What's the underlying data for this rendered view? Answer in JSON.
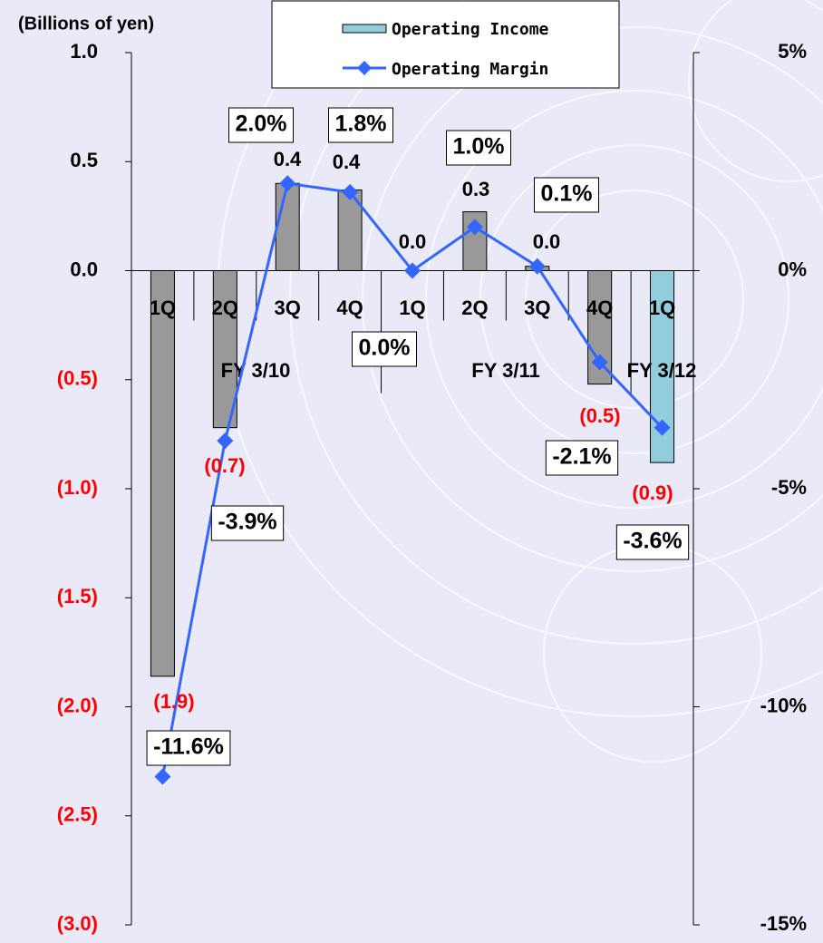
{
  "chart_data": {
    "type": "bar_line",
    "y_label": "(Billions of yen)",
    "categories": [
      "1Q",
      "2Q",
      "3Q",
      "4Q",
      "1Q",
      "2Q",
      "3Q",
      "4Q",
      "1Q"
    ],
    "groups": [
      "FY 3/10",
      "FY 3/11",
      "FY 3/12"
    ],
    "series": [
      {
        "name": "Operating Income",
        "type": "bar",
        "color": "#999999",
        "colors": [
          "#999999",
          "#999999",
          "#999999",
          "#999999",
          "#999999",
          "#999999",
          "#999999",
          "#999999",
          "#92cddc"
        ],
        "values": [
          -1.86,
          -0.72,
          0.4,
          0.37,
          0.0,
          0.27,
          0.02,
          -0.52,
          -0.88
        ],
        "value_labels": [
          "(1.9)",
          "(0.7)",
          "0.4",
          "0.4",
          "0.0",
          "0.3",
          "0.0",
          "(0.5)",
          "(0.9)"
        ]
      },
      {
        "name": "Operating Margin",
        "type": "line",
        "axis": "y2",
        "color": "#3366ff",
        "values": [
          -11.6,
          -3.9,
          2.0,
          1.8,
          0.0,
          1.0,
          0.1,
          -2.1,
          -3.6
        ],
        "value_labels": [
          "-11.6%",
          "-3.9%",
          "2.0%",
          "1.8%",
          "0.0%",
          "1.0%",
          "0.1%",
          "-2.1%",
          "-3.6%"
        ]
      }
    ],
    "ylim": [
      -3.0,
      1.0
    ],
    "yticks": [
      {
        "value": 1.0,
        "label": "1.0"
      },
      {
        "value": 0.5,
        "label": "0.5"
      },
      {
        "value": 0.0,
        "label": "0.0"
      },
      {
        "value": -0.5,
        "label": "(0.5)"
      },
      {
        "value": -1.0,
        "label": "(1.0)"
      },
      {
        "value": -1.5,
        "label": "(1.5)"
      },
      {
        "value": -2.0,
        "label": "(2.0)"
      },
      {
        "value": -2.5,
        "label": "(2.5)"
      },
      {
        "value": -3.0,
        "label": "(3.0)"
      }
    ],
    "y2lim": [
      -15,
      5
    ],
    "y2ticks": [
      {
        "value": 5,
        "label": "5%"
      },
      {
        "value": 0,
        "label": "0%"
      },
      {
        "value": -5,
        "label": "-5%"
      },
      {
        "value": -10,
        "label": "-10%"
      },
      {
        "value": -15,
        "label": "-15%"
      }
    ]
  }
}
